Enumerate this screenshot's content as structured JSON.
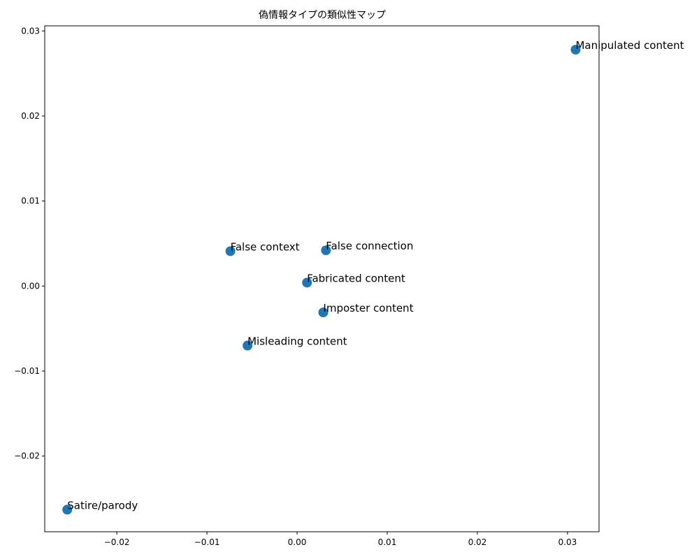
{
  "chart_data": {
    "type": "scatter",
    "title": "偽情報タイプの類似性マップ",
    "xlabel": "",
    "ylabel": "",
    "xlim": [
      -0.028,
      0.0335
    ],
    "ylim": [
      -0.0289,
      0.0306
    ],
    "grid": false,
    "legend": false,
    "marker_color": "#1f77b4",
    "x_ticks": [
      {
        "value": -0.02,
        "label": "−0.02"
      },
      {
        "value": -0.01,
        "label": "−0.01"
      },
      {
        "value": 0.0,
        "label": "0.00"
      },
      {
        "value": 0.01,
        "label": "0.01"
      },
      {
        "value": 0.02,
        "label": "0.02"
      },
      {
        "value": 0.03,
        "label": "0.03"
      }
    ],
    "y_ticks": [
      {
        "value": -0.02,
        "label": "−0.02"
      },
      {
        "value": -0.01,
        "label": "−0.01"
      },
      {
        "value": 0.0,
        "label": "0.00"
      },
      {
        "value": 0.01,
        "label": "0.01"
      },
      {
        "value": 0.02,
        "label": "0.02"
      },
      {
        "value": 0.03,
        "label": "0.03"
      }
    ],
    "points": [
      {
        "label": "Manipulated content",
        "x": 0.0309,
        "y": 0.0278
      },
      {
        "label": "False context",
        "x": -0.0074,
        "y": 0.0041
      },
      {
        "label": "False connection",
        "x": 0.0032,
        "y": 0.0042
      },
      {
        "label": "Fabricated content",
        "x": 0.0011,
        "y": 0.0004
      },
      {
        "label": "Imposter content",
        "x": 0.0029,
        "y": -0.0031
      },
      {
        "label": "Misleading content",
        "x": -0.0055,
        "y": -0.007
      },
      {
        "label": "Satire/parody",
        "x": -0.0255,
        "y": -0.0263
      }
    ]
  }
}
